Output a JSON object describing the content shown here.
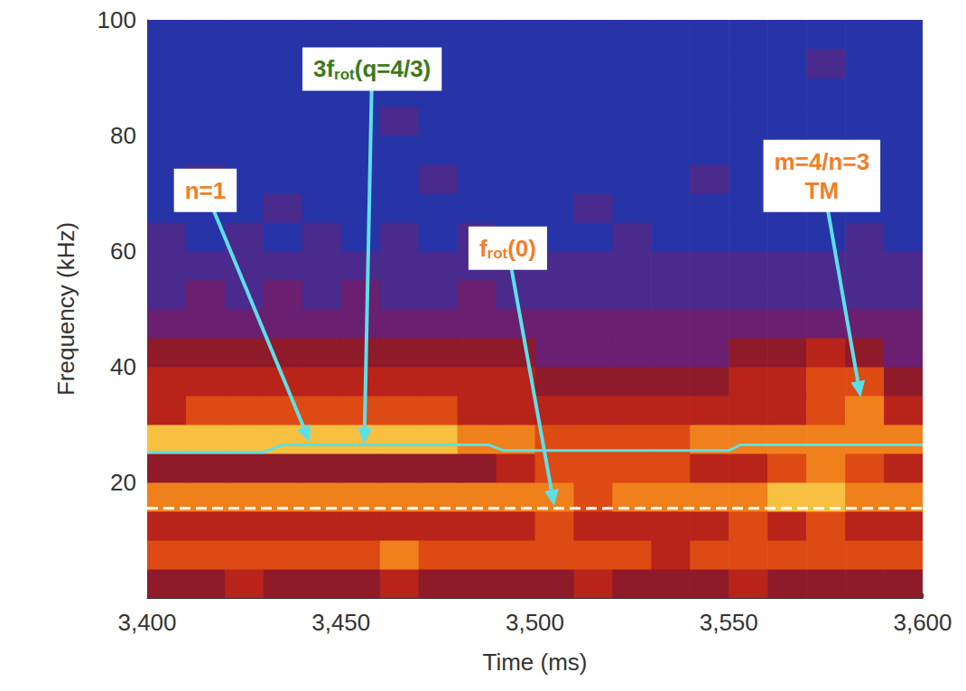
{
  "chart_data": {
    "type": "spectrogram",
    "x_label": "Time (ms)",
    "y_label": "Frequency (kHz)",
    "xlim": [
      3400,
      3600
    ],
    "xticks": [
      3400,
      3450,
      3500,
      3550,
      3600
    ],
    "ylim": [
      0,
      100
    ],
    "yticks": [
      20,
      40,
      60,
      80,
      100
    ],
    "cell_x": [
      3400,
      3410,
      3420,
      3430,
      3440,
      3450,
      3460,
      3470,
      3480,
      3490,
      3500,
      3510,
      3520,
      3530,
      3540,
      3550,
      3560,
      3570,
      3580,
      3590,
      3600
    ],
    "cell_y": [
      0,
      5,
      10,
      15,
      20,
      25,
      30,
      35,
      40,
      45,
      50,
      55,
      60,
      65,
      70,
      75,
      80,
      85,
      90,
      95,
      100
    ],
    "zlim": [
      0,
      9
    ],
    "cells": [
      [
        4,
        4,
        5,
        4,
        4,
        4,
        5,
        4,
        4,
        4,
        4,
        5,
        4,
        4,
        4,
        5,
        4,
        4,
        4,
        4
      ],
      [
        6,
        6,
        6,
        6,
        6,
        6,
        7,
        6,
        6,
        6,
        6,
        6,
        6,
        5,
        6,
        6,
        6,
        6,
        6,
        6
      ],
      [
        5,
        5,
        5,
        5,
        5,
        5,
        5,
        5,
        5,
        5,
        6,
        5,
        5,
        5,
        5,
        6,
        5,
        6,
        5,
        5
      ],
      [
        7,
        7,
        7,
        7,
        7,
        7,
        7,
        7,
        7,
        7,
        7,
        6,
        7,
        7,
        7,
        7,
        8,
        8,
        7,
        7
      ],
      [
        4,
        4,
        4,
        4,
        4,
        4,
        4,
        4,
        4,
        5,
        6,
        6,
        6,
        6,
        5,
        5,
        6,
        7,
        6,
        5
      ],
      [
        8,
        8,
        8,
        8,
        8,
        8,
        8,
        8,
        7,
        7,
        6,
        6,
        6,
        6,
        7,
        7,
        7,
        7,
        7,
        7
      ],
      [
        5,
        6,
        6,
        6,
        6,
        6,
        6,
        6,
        5,
        5,
        5,
        5,
        5,
        5,
        5,
        5,
        5,
        6,
        7,
        5
      ],
      [
        5,
        5,
        5,
        5,
        5,
        5,
        5,
        5,
        5,
        5,
        4,
        4,
        4,
        4,
        4,
        5,
        5,
        6,
        6,
        4
      ],
      [
        4,
        4,
        4,
        4,
        4,
        4,
        4,
        4,
        4,
        4,
        3,
        3,
        3,
        3,
        3,
        4,
        4,
        5,
        4,
        3
      ],
      [
        3,
        3,
        3,
        3,
        3,
        3,
        3,
        3,
        3,
        3,
        3,
        3,
        3,
        3,
        3,
        3,
        3,
        3,
        3,
        3
      ],
      [
        2,
        3,
        2,
        3,
        2,
        3,
        2,
        2,
        3,
        2,
        2,
        2,
        2,
        2,
        2,
        2,
        2,
        2,
        2,
        2
      ],
      [
        2,
        2,
        2,
        2,
        2,
        2,
        2,
        2,
        2,
        2,
        2,
        2,
        2,
        2,
        2,
        2,
        2,
        2,
        2,
        2
      ],
      [
        2,
        1,
        2,
        1,
        2,
        1,
        2,
        1,
        2,
        1,
        1,
        1,
        2,
        1,
        1,
        1,
        1,
        1,
        2,
        1
      ],
      [
        1,
        1,
        1,
        2,
        1,
        1,
        1,
        1,
        1,
        1,
        1,
        2,
        1,
        1,
        1,
        1,
        1,
        1,
        1,
        1
      ],
      [
        1,
        2,
        1,
        1,
        1,
        1,
        1,
        2,
        1,
        1,
        1,
        1,
        1,
        1,
        2,
        1,
        1,
        1,
        1,
        1
      ],
      [
        1,
        1,
        1,
        1,
        1,
        1,
        1,
        1,
        1,
        1,
        1,
        1,
        1,
        1,
        1,
        1,
        1,
        1,
        1,
        1
      ],
      [
        1,
        1,
        1,
        1,
        1,
        1,
        2,
        1,
        1,
        1,
        1,
        1,
        1,
        1,
        1,
        1,
        1,
        1,
        1,
        1
      ],
      [
        1,
        1,
        1,
        1,
        1,
        1,
        1,
        1,
        1,
        1,
        1,
        1,
        1,
        1,
        1,
        1,
        1,
        1,
        1,
        1
      ],
      [
        1,
        1,
        1,
        1,
        1,
        1,
        1,
        1,
        1,
        1,
        1,
        1,
        1,
        1,
        1,
        1,
        1,
        2,
        1,
        1
      ],
      [
        1,
        1,
        1,
        1,
        1,
        1,
        1,
        1,
        1,
        1,
        1,
        1,
        1,
        1,
        1,
        1,
        1,
        1,
        1,
        1
      ]
    ],
    "series": [
      {
        "type": "line",
        "color": "#5ce0e8",
        "line_style": "solid",
        "x": [
          3400,
          3430,
          3435,
          3488,
          3492,
          3550,
          3553,
          3600
        ],
        "values": [
          25.2,
          25.2,
          26.5,
          26.5,
          25.5,
          25.5,
          26.5,
          26.5
        ]
      },
      {
        "type": "line",
        "color": "#ffffff",
        "line_style": "dashed",
        "x": [
          3400,
          3600
        ],
        "values": [
          15.5,
          15.5
        ]
      }
    ],
    "annotations": [
      {
        "text": "n=1",
        "color": "#f07f2a",
        "at": [
          3442,
          26.9
        ]
      },
      {
        "text": "3frot(q=4/3)",
        "subscript": "rot",
        "color": "#3d7a1a",
        "at": [
          3456,
          26.6
        ]
      },
      {
        "text": "frot(0)",
        "subscript": "rot",
        "color": "#f07f2a",
        "at": [
          3505,
          15.9
        ]
      },
      {
        "text": "m=4/n=3\nTM",
        "color": "#f07f2a",
        "at": [
          3584,
          34.7
        ]
      }
    ]
  }
}
